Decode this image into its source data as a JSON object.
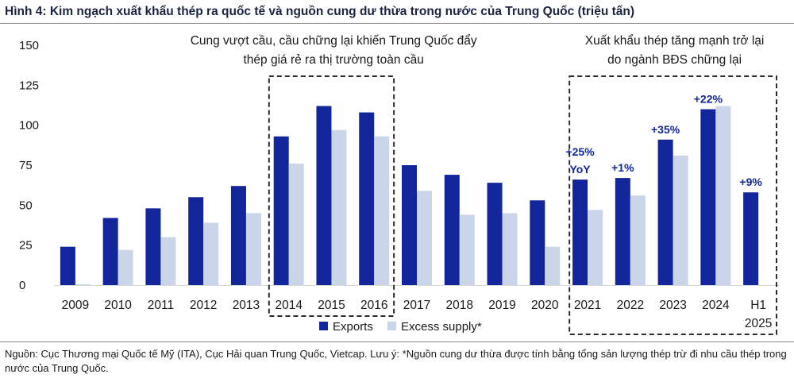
{
  "title": "Hình 4: Kim ngạch xuất khẩu thép ra quốc tế và nguồn cung dư thừa trong nước của Trung Quốc (triệu tấn)",
  "note": "Nguồn: Cục Thương mại Quốc tế Mỹ (ITA), Cục Hải quan Trung Quốc, Vietcap. Lưu ý: *Nguồn cung dư thừa được tính bằng tổng sản lượng thép trừ đi nhu cầu thép trong nước của Trung Quốc.",
  "colors": {
    "exports": "#13259a",
    "excess": "#cbd5ea",
    "text": "#1a1a1a",
    "grid": "#e3e3e3"
  },
  "chart_data": {
    "type": "bar",
    "title": "Hình 4: Kim ngạch xuất khẩu thép ra quốc tế và nguồn cung dư thừa trong nước của Trung Quốc (triệu tấn)",
    "xlabel": "",
    "ylabel": "triệu tấn",
    "ylim": [
      0,
      150
    ],
    "yticks": [
      0,
      25,
      50,
      75,
      100,
      125,
      150
    ],
    "categories": [
      "2009",
      "2010",
      "2011",
      "2012",
      "2013",
      "2014",
      "2015",
      "2016",
      "2017",
      "2018",
      "2019",
      "2020",
      "2021",
      "2022",
      "2023",
      "2024",
      "H1 2025"
    ],
    "series": [
      {
        "name": "Exports",
        "values": [
          24,
          42,
          48,
          55,
          62,
          93,
          112,
          108,
          75,
          69,
          64,
          53,
          66,
          67,
          91,
          110,
          58
        ]
      },
      {
        "name": "Excess supply*",
        "values": [
          0.5,
          22,
          30,
          39,
          45,
          76,
          97,
          93,
          59,
          44,
          45,
          24,
          47,
          56,
          81,
          112,
          null
        ]
      }
    ],
    "legend": [
      "Exports",
      "Excess supply*"
    ],
    "legend_position": "bottom-center",
    "annotations": [
      {
        "category": "2021",
        "text": [
          "+25%",
          "YoY"
        ]
      },
      {
        "category": "2022",
        "text": [
          "+1%"
        ]
      },
      {
        "category": "2023",
        "text": [
          "+35%"
        ]
      },
      {
        "category": "2024",
        "text": [
          "+22%"
        ]
      },
      {
        "category": "H1 2025",
        "text": [
          "+9%"
        ]
      }
    ],
    "highlight_boxes": [
      {
        "from": "2014",
        "to": "2016",
        "text": [
          "Cung vượt cầu, cầu chững lại khiến Trung Quốc đẩy",
          "thép giá rẻ ra thị trường toàn cầu"
        ]
      },
      {
        "from": "2021",
        "to": "H1 2025",
        "text": [
          "Xuất khẩu thép tăng mạnh trở lại",
          "do ngành BĐS chững lại"
        ]
      }
    ]
  }
}
